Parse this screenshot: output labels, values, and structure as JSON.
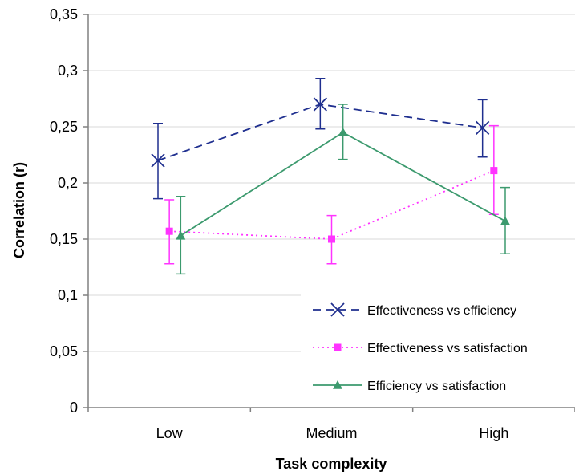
{
  "chart_data": {
    "type": "line",
    "title": "",
    "xlabel": "Task complexity",
    "ylabel": "Correlation (r)",
    "categories": [
      "Low",
      "Medium",
      "High"
    ],
    "ylim": [
      0,
      0.35
    ],
    "yticks": [
      0,
      0.05,
      0.1,
      0.15,
      0.2,
      0.25,
      0.3,
      0.35
    ],
    "ytick_labels": [
      "0",
      "0,05",
      "0,1",
      "0,15",
      "0,2",
      "0,25",
      "0,3",
      "0,35"
    ],
    "grid": "horizontal",
    "legend_position": "bottom-right",
    "series": [
      {
        "name": "Effectiveness vs efficiency",
        "values": [
          0.22,
          0.27,
          0.249
        ],
        "err_low": [
          0.186,
          0.248,
          0.223
        ],
        "err_high": [
          0.253,
          0.293,
          0.274
        ],
        "color": "#1f2f8f",
        "line_style": "dashed",
        "marker": "x"
      },
      {
        "name": "Effectiveness vs satisfaction",
        "values": [
          0.157,
          0.15,
          0.211
        ],
        "err_low": [
          0.128,
          0.128,
          0.172
        ],
        "err_high": [
          0.185,
          0.171,
          0.251
        ],
        "color": "#ff33ff",
        "line_style": "dotted",
        "marker": "square"
      },
      {
        "name": "Efficiency vs satisfaction",
        "values": [
          0.153,
          0.245,
          0.166
        ],
        "err_low": [
          0.119,
          0.221,
          0.137
        ],
        "err_high": [
          0.188,
          0.27,
          0.196
        ],
        "color": "#3c9a6e",
        "line_style": "solid",
        "marker": "triangle"
      }
    ]
  }
}
